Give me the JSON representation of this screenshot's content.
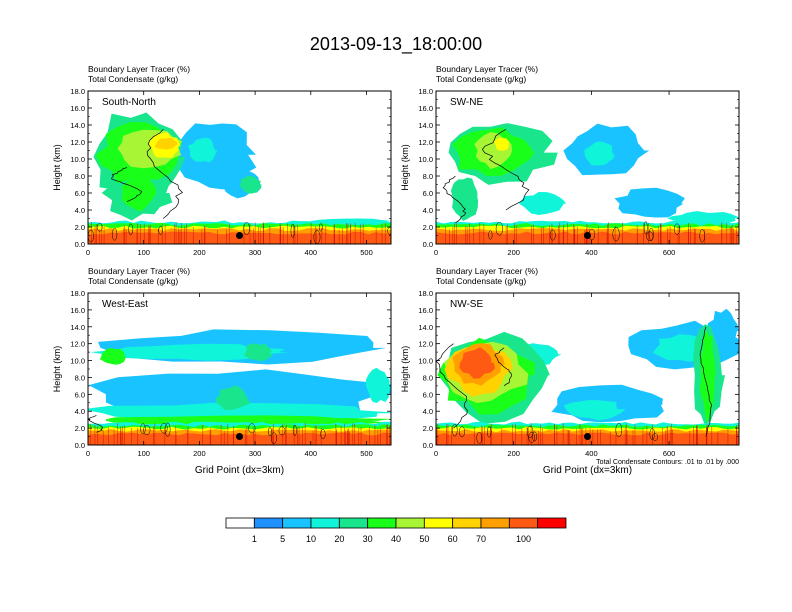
{
  "title": "2013-09-13_18:00:00",
  "chart_data": [
    {
      "type": "heatmap",
      "title": "South-North",
      "subtitle_lines": [
        "Boundary Layer Tracer   (%)",
        "Total Condensate   (g/kg)"
      ],
      "ylabel": "Height (km)",
      "xlabel": "",
      "xlim": [
        0,
        544
      ],
      "ylim": [
        0,
        18
      ],
      "xticks": [
        "0",
        "100",
        "200",
        "300",
        "400",
        "500"
      ],
      "yticks": [
        "0.0",
        "2.0",
        "4.0",
        "6.0",
        "8.0",
        "10.0",
        "12.0",
        "14.0",
        "16.0",
        "18.0"
      ],
      "marker": {
        "x": 272,
        "y": 1.0
      },
      "blobs": [
        {
          "x": [
            5,
            175
          ],
          "y": [
            5.0,
            15.5
          ],
          "level": 20
        },
        {
          "x": [
            20,
            160
          ],
          "y": [
            7.0,
            14.0
          ],
          "level": 30
        },
        {
          "x": [
            50,
            170
          ],
          "y": [
            9.0,
            13.5
          ],
          "level": 40
        },
        {
          "x": [
            110,
            165
          ],
          "y": [
            10.0,
            13.0
          ],
          "level": 50
        },
        {
          "x": [
            120,
            160
          ],
          "y": [
            11.0,
            12.5
          ],
          "level": 60
        },
        {
          "x": [
            160,
            300
          ],
          "y": [
            6.5,
            14.5
          ],
          "level": 5
        },
        {
          "x": [
            180,
            230
          ],
          "y": [
            9.5,
            12.5
          ],
          "level": 10
        },
        {
          "x": [
            240,
            310
          ],
          "y": [
            5.5,
            9.0
          ],
          "level": 5
        },
        {
          "x": [
            270,
            310
          ],
          "y": [
            6.0,
            8.0
          ],
          "level": 20
        },
        {
          "x": [
            30,
            150
          ],
          "y": [
            3.0,
            9.0
          ],
          "level": 20
        },
        {
          "x": [
            60,
            120
          ],
          "y": [
            4.0,
            8.0
          ],
          "level": 30
        },
        {
          "x": [
            400,
            544
          ],
          "y": [
            2.2,
            3.0
          ],
          "level": 10
        }
      ],
      "condensate_contours": [
        {
          "x": [
            100,
            170
          ],
          "y": [
            3.0,
            13.5
          ]
        },
        {
          "x": [
            40,
            100
          ],
          "y": [
            5.0,
            9.0
          ]
        }
      ]
    },
    {
      "type": "heatmap",
      "title": "SW-NE",
      "subtitle_lines": [
        "Boundary Layer Tracer   (%)",
        "Total Condensate   (g/kg)"
      ],
      "ylabel": "Height (km)",
      "xlabel": "",
      "xlim": [
        0,
        780
      ],
      "ylim": [
        0,
        18
      ],
      "xticks": [
        "0",
        "200",
        "400",
        "600"
      ],
      "yticks": [
        "0.0",
        "2.0",
        "4.0",
        "6.0",
        "8.0",
        "10.0",
        "12.0",
        "14.0",
        "16.0",
        "18.0"
      ],
      "marker": {
        "x": 390,
        "y": 1.0
      },
      "blobs": [
        {
          "x": [
            20,
            300
          ],
          "y": [
            7.0,
            14.5
          ],
          "level": 20
        },
        {
          "x": [
            40,
            260
          ],
          "y": [
            8.0,
            13.5
          ],
          "level": 30
        },
        {
          "x": [
            100,
            200
          ],
          "y": [
            9.0,
            13.0
          ],
          "level": 40
        },
        {
          "x": [
            150,
            190
          ],
          "y": [
            11.0,
            12.5
          ],
          "level": 50
        },
        {
          "x": [
            330,
            540
          ],
          "y": [
            8.0,
            14.0
          ],
          "level": 5
        },
        {
          "x": [
            380,
            460
          ],
          "y": [
            9.0,
            12.0
          ],
          "level": 10
        },
        {
          "x": [
            40,
            110
          ],
          "y": [
            2.5,
            8.0
          ],
          "level": 20
        },
        {
          "x": [
            460,
            640
          ],
          "y": [
            3.0,
            6.5
          ],
          "level": 5
        },
        {
          "x": [
            220,
            330
          ],
          "y": [
            3.5,
            6.0
          ],
          "level": 10
        },
        {
          "x": [
            600,
            780
          ],
          "y": [
            2.2,
            3.8
          ],
          "level": 10
        }
      ],
      "condensate_contours": [
        {
          "x": [
            120,
            240
          ],
          "y": [
            4.0,
            13.5
          ]
        },
        {
          "x": [
            20,
            80
          ],
          "y": [
            2.5,
            8.0
          ]
        }
      ]
    },
    {
      "type": "heatmap",
      "title": "West-East",
      "subtitle_lines": [
        "Boundary Layer Tracer   (%)",
        "Total Condensate   (g/kg)"
      ],
      "ylabel": "Height (km)",
      "xlabel": "Grid Point (dx=3km)",
      "xlim": [
        0,
        544
      ],
      "ylim": [
        0,
        18
      ],
      "xticks": [
        "0",
        "100",
        "200",
        "300",
        "400",
        "500"
      ],
      "yticks": [
        "0.0",
        "2.0",
        "4.0",
        "6.0",
        "8.0",
        "10.0",
        "12.0",
        "14.0",
        "16.0",
        "18.0"
      ],
      "marker": {
        "x": 272,
        "y": 1.0
      },
      "blobs": [
        {
          "x": [
            10,
            544
          ],
          "y": [
            9.5,
            13.5
          ],
          "level": 5
        },
        {
          "x": [
            20,
            350
          ],
          "y": [
            10.0,
            12.0
          ],
          "level": 10
        },
        {
          "x": [
            20,
            70
          ],
          "y": [
            9.5,
            11.5
          ],
          "level": 30
        },
        {
          "x": [
            280,
            330
          ],
          "y": [
            10.0,
            12.0
          ],
          "level": 20
        },
        {
          "x": [
            0,
            544
          ],
          "y": [
            3.0,
            9.0
          ],
          "level": 5
        },
        {
          "x": [
            0,
            544
          ],
          "y": [
            2.5,
            5.0
          ],
          "level": 10
        },
        {
          "x": [
            230,
            290
          ],
          "y": [
            4.0,
            7.0
          ],
          "level": 20
        },
        {
          "x": [
            0,
            544
          ],
          "y": [
            2.2,
            3.5
          ],
          "level": 30
        },
        {
          "x": [
            500,
            544
          ],
          "y": [
            5.0,
            9.0
          ],
          "level": 10
        }
      ],
      "condensate_contours": [
        {
          "x": [
            0,
            30
          ],
          "y": [
            1.5,
            3.5
          ]
        }
      ]
    },
    {
      "type": "heatmap",
      "title": "NW-SE",
      "subtitle_lines": [
        "Boundary Layer Tracer   (%)",
        "Total Condensate   (g/kg)"
      ],
      "ylabel": "Height (km)",
      "xlabel": "Grid Point (dx=3km)",
      "xlim": [
        0,
        780
      ],
      "ylim": [
        0,
        18
      ],
      "xticks": [
        "0",
        "200",
        "400",
        "600"
      ],
      "yticks": [
        "0.0",
        "2.0",
        "4.0",
        "6.0",
        "8.0",
        "10.0",
        "12.0",
        "14.0",
        "16.0",
        "18.0"
      ],
      "marker": {
        "x": 390,
        "y": 1.0
      },
      "annotation": "Total Condensate Contours: .01 to .01 by .000",
      "blobs": [
        {
          "x": [
            0,
            300
          ],
          "y": [
            3.0,
            13.5
          ],
          "level": 20
        },
        {
          "x": [
            10,
            260
          ],
          "y": [
            4.0,
            12.5
          ],
          "level": 30
        },
        {
          "x": [
            20,
            230
          ],
          "y": [
            5.0,
            12.0
          ],
          "level": 40
        },
        {
          "x": [
            30,
            190
          ],
          "y": [
            6.0,
            12.0
          ],
          "level": 60
        },
        {
          "x": [
            40,
            170
          ],
          "y": [
            7.0,
            12.0
          ],
          "level": 70
        },
        {
          "x": [
            60,
            150
          ],
          "y": [
            8.0,
            11.5
          ],
          "level": 100
        },
        {
          "x": [
            200,
            320
          ],
          "y": [
            9.5,
            12.0
          ],
          "level": 10
        },
        {
          "x": [
            500,
            780
          ],
          "y": [
            9.0,
            14.5
          ],
          "level": 5
        },
        {
          "x": [
            560,
            720
          ],
          "y": [
            10.0,
            13.0
          ],
          "level": 10
        },
        {
          "x": [
            700,
            780
          ],
          "y": [
            11.0,
            16.0
          ],
          "level": 5
        },
        {
          "x": [
            660,
            740
          ],
          "y": [
            2.5,
            14.0
          ],
          "level": 20
        },
        {
          "x": [
            680,
            720
          ],
          "y": [
            3.0,
            13.5
          ],
          "level": 30
        },
        {
          "x": [
            300,
            600
          ],
          "y": [
            2.5,
            7.0
          ],
          "level": 5
        },
        {
          "x": [
            330,
            480
          ],
          "y": [
            3.0,
            5.5
          ],
          "level": 10
        }
      ],
      "condensate_contours": [
        {
          "x": [
            0,
            90
          ],
          "y": [
            2.0,
            12.0
          ]
        },
        {
          "x": [
            150,
            200
          ],
          "y": [
            7.0,
            11.5
          ]
        },
        {
          "x": [
            680,
            710
          ],
          "y": [
            1.0,
            14.0
          ]
        }
      ]
    }
  ],
  "colorbar": {
    "colors": [
      "#ffffff",
      "#1e90ff",
      "#19c3ff",
      "#10f5d9",
      "#19e68c",
      "#19ff19",
      "#a8f535",
      "#ffff00",
      "#ffd200",
      "#ffa000",
      "#ff5a14",
      "#ff0000"
    ],
    "labels": [
      "1",
      "5",
      "10",
      "20",
      "30",
      "40",
      "50",
      "60",
      "70",
      "100"
    ],
    "levels": [
      1,
      5,
      10,
      20,
      30,
      40,
      50,
      60,
      70,
      100
    ]
  }
}
